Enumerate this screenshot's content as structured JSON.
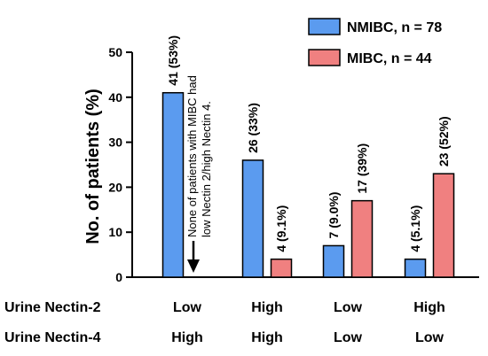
{
  "chart_data": {
    "type": "bar",
    "ylabel": "No. of patients (%)",
    "ylim": [
      0,
      50
    ],
    "yticks": [
      0,
      10,
      20,
      30,
      40,
      50
    ],
    "grid": false,
    "legend_position": "top-right",
    "categories": [
      {
        "nectin2": "Low",
        "nectin4": "High"
      },
      {
        "nectin2": "High",
        "nectin4": "High"
      },
      {
        "nectin2": "Low",
        "nectin4": "Low"
      },
      {
        "nectin2": "High",
        "nectin4": "Low"
      }
    ],
    "row_labels": [
      "Urine Nectin-2",
      "Urine Nectin-4"
    ],
    "series": [
      {
        "name": "NMIBC, n = 78",
        "color": "#5b9bef",
        "values": [
          41,
          26,
          7,
          4
        ],
        "labels": [
          "41 (53%)",
          "26 (33%)",
          "7 (9.0%)",
          "4 (5.1%)"
        ]
      },
      {
        "name": "MIBC, n = 44",
        "color": "#f08080",
        "values": [
          0,
          4,
          17,
          23
        ],
        "labels": [
          "",
          "4 (9.1%)",
          "17 (39%)",
          "23 (52%)"
        ]
      }
    ],
    "annotation": {
      "lines": [
        "None of patients with MIBC had",
        "low Nectin 2/high Nectin 4."
      ],
      "category_index": 0
    }
  }
}
